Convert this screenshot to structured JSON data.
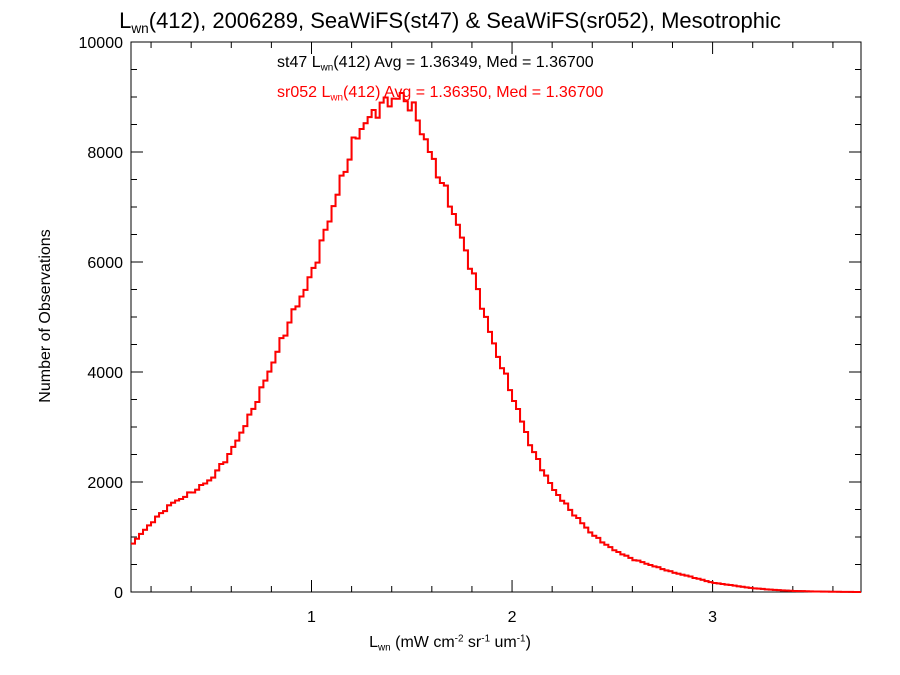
{
  "chart_data": {
    "type": "histogram",
    "title": {
      "prefix": "L",
      "sub": "wn",
      "rest": "(412), 2006289, SeaWiFS(st47) & SeaWiFS(sr052), Mesotrophic"
    },
    "xlabel": {
      "base": "L",
      "sub": "wn",
      "p1": " (mW cm",
      "sup1": "-2",
      "p2": " sr",
      "sup2": "-1",
      "p3": " um",
      "sup3": "-1",
      "p4": ")"
    },
    "ylabel": "Number of Observations",
    "xlim": [
      0.1,
      3.74
    ],
    "ylim": [
      0,
      10000
    ],
    "xticks": [
      1,
      2,
      3
    ],
    "xtick_labels": [
      "1",
      "2",
      "3"
    ],
    "yticks": [
      0,
      2000,
      4000,
      6000,
      8000,
      10000
    ],
    "ytick_labels": [
      "0",
      "2000",
      "4000",
      "6000",
      "8000",
      "10000"
    ],
    "annotations": [
      {
        "pre": "st47 L",
        "sub": "wn",
        "post": "(412) Avg = 1.36349, Med = 1.36700",
        "color": "#000000"
      },
      {
        "pre": "sr052 L",
        "sub": "wn",
        "post": "(412) Avg = 1.36350, Med = 1.36700",
        "color": "#ff0000"
      }
    ],
    "series": [
      {
        "label": "st47",
        "color": "#000000",
        "x": [
          0.1,
          0.2,
          0.3,
          0.4,
          0.5,
          0.6,
          0.7,
          0.8,
          0.9,
          1.0,
          1.1,
          1.2,
          1.25,
          1.3,
          1.35,
          1.4,
          1.45,
          1.5,
          1.55,
          1.6,
          1.7,
          1.8,
          1.9,
          2.0,
          2.1,
          2.2,
          2.3,
          2.4,
          2.5,
          2.6,
          2.7,
          2.8,
          2.9,
          3.0,
          3.1,
          3.2,
          3.3,
          3.4,
          3.5,
          3.6,
          3.74
        ],
        "y": [
          850,
          1250,
          1600,
          1800,
          2050,
          2550,
          3250,
          4100,
          5000,
          5750,
          6900,
          8050,
          8450,
          8650,
          8850,
          8950,
          9000,
          8850,
          8400,
          7900,
          7000,
          5850,
          4600,
          3600,
          2600,
          1900,
          1450,
          1050,
          780,
          600,
          480,
          360,
          270,
          170,
          120,
          70,
          40,
          20,
          10,
          5,
          0
        ]
      },
      {
        "label": "sr052",
        "color": "#ff0000",
        "x": [
          0.1,
          0.2,
          0.3,
          0.4,
          0.5,
          0.6,
          0.7,
          0.8,
          0.9,
          1.0,
          1.1,
          1.2,
          1.25,
          1.3,
          1.35,
          1.4,
          1.45,
          1.5,
          1.55,
          1.6,
          1.7,
          1.8,
          1.9,
          2.0,
          2.1,
          2.2,
          2.3,
          2.4,
          2.5,
          2.6,
          2.7,
          2.8,
          2.9,
          3.0,
          3.1,
          3.2,
          3.3,
          3.4,
          3.5,
          3.6,
          3.74
        ],
        "y": [
          850,
          1250,
          1600,
          1800,
          2050,
          2550,
          3250,
          4100,
          5000,
          5750,
          6900,
          8050,
          8450,
          8650,
          8850,
          8950,
          9000,
          8850,
          8400,
          7900,
          7000,
          5850,
          4600,
          3600,
          2600,
          1900,
          1450,
          1050,
          780,
          600,
          480,
          360,
          270,
          170,
          120,
          70,
          40,
          20,
          10,
          5,
          0
        ]
      }
    ]
  }
}
